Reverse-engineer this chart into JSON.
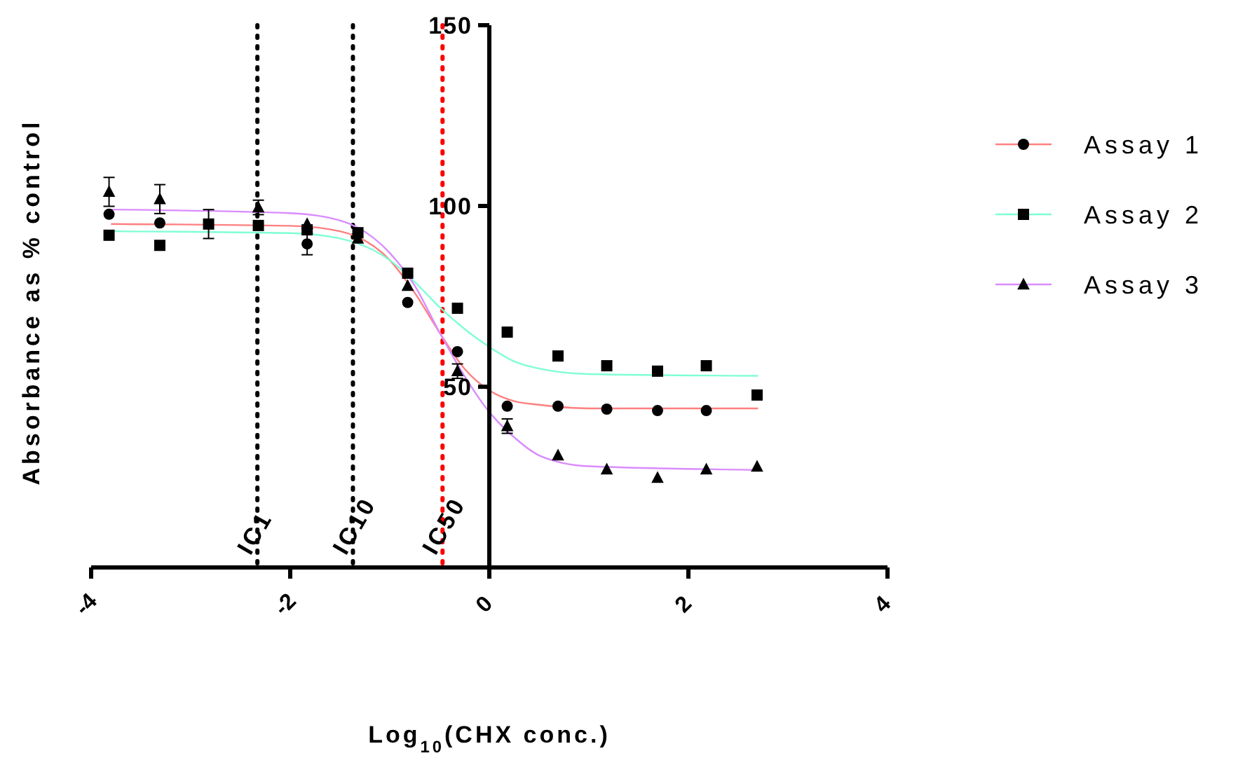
{
  "chart_data": {
    "type": "scatter",
    "xlabel": "Log$_{10}$(CHX conc.)",
    "ylabel": "Absorbance as % control",
    "x": [
      -3.82,
      -3.31,
      -2.82,
      -2.32,
      -1.83,
      -1.32,
      -0.82,
      -0.32,
      0.18,
      0.69,
      1.18,
      1.69,
      2.18,
      2.69
    ],
    "xlim": [
      -4,
      4
    ],
    "xticks": [
      -4,
      -2,
      0,
      2,
      4
    ],
    "ylim": [
      0,
      150
    ],
    "yticks": [
      {
        "value": 0,
        "label": null
      },
      50,
      100,
      150
    ],
    "series": [
      {
        "name": "Assay 1",
        "color": "#000000",
        "marker": "circle",
        "values": [
          97.7,
          95.3,
          null,
          null,
          89.5,
          null,
          73.3,
          59.7,
          44.6,
          44.6,
          43.8,
          43.4,
          43.4,
          null
        ],
        "errors": [
          null,
          null,
          null,
          null,
          3,
          null,
          null,
          null,
          null,
          null,
          null,
          null,
          null,
          null
        ]
      },
      {
        "name": "Assay 2",
        "color": "#000000",
        "marker": "square",
        "values": [
          91.9,
          89.1,
          95,
          94.6,
          93.4,
          92.6,
          81.4,
          71.7,
          65.1,
          58.5,
          55.8,
          54.3,
          55.8,
          47.7
        ],
        "errors": [
          null,
          null,
          4,
          null,
          null,
          null,
          null,
          null,
          null,
          null,
          null,
          null,
          null,
          null
        ]
      },
      {
        "name": "Assay 3",
        "color": "#000000",
        "marker": "triangle",
        "values": [
          103.9,
          101.9,
          null,
          99.6,
          95,
          91,
          77.9,
          54.3,
          39.1,
          31,
          27.1,
          24.8,
          27.1,
          27.9
        ],
        "errors": [
          4,
          4,
          null,
          2,
          null,
          null,
          null,
          2,
          2,
          null,
          null,
          null,
          null,
          null
        ]
      },
      {
        "type": "line",
        "color": "#ff7f7f",
        "x": [
          -3.8,
          -2,
          -1.5,
          -1,
          -0.75,
          -0.5,
          -0.25,
          0,
          0.25,
          0.5,
          1,
          2.7
        ],
        "values": [
          95,
          94.5,
          93,
          85,
          76,
          65,
          55,
          49,
          46,
          45,
          44,
          44
        ]
      },
      {
        "type": "line",
        "color": "#7fffd4",
        "x": [
          -3.8,
          -2,
          -1.5,
          -1,
          -0.75,
          -0.5,
          -0.25,
          0,
          0.25,
          0.5,
          1,
          2.7
        ],
        "values": [
          93,
          92.5,
          91,
          85,
          79,
          72,
          66,
          61,
          57,
          55,
          53.5,
          53
        ]
      },
      {
        "type": "line",
        "color": "#d98cff",
        "x": [
          -3.8,
          -2,
          -1.5,
          -1,
          -0.75,
          -0.5,
          -0.25,
          0,
          0.25,
          0.5,
          1,
          2.7
        ],
        "values": [
          99,
          98,
          96,
          87,
          78,
          65,
          53,
          43,
          36,
          31,
          28,
          27
        ]
      }
    ],
    "ref_lines": [
      {
        "axis": "x",
        "value": -2.33,
        "label": "IC1",
        "color": "#000000",
        "line_style": "dotted"
      },
      {
        "axis": "x",
        "value": -1.37,
        "label": "IC10",
        "color": "#000000",
        "line_style": "dotted"
      },
      {
        "axis": "x",
        "value": -0.47,
        "label": "IC50",
        "color": "#ff0000",
        "line_style": "dotted"
      }
    ],
    "legend": "right",
    "grid": false
  }
}
